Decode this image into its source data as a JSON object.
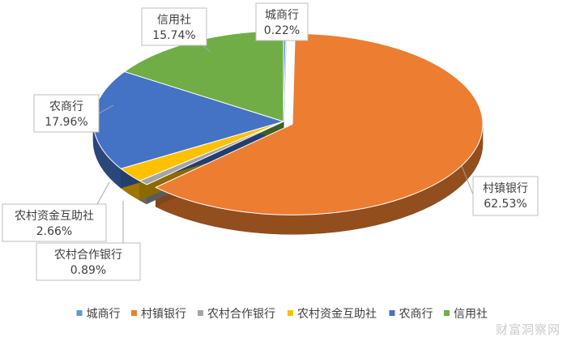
{
  "chart_data": {
    "type": "pie",
    "title": "",
    "categories": [
      "城商行",
      "村镇银行",
      "农村合作银行",
      "农村资金互助社",
      "农商行",
      "信用社"
    ],
    "values": [
      0.22,
      62.53,
      0.89,
      2.66,
      17.96,
      15.74
    ],
    "value_labels": [
      "0.22%",
      "62.53%",
      "0.89%",
      "2.66%",
      "17.96%",
      "15.74%"
    ],
    "colors": [
      "#5b9bd5",
      "#ed7d31",
      "#a5a5a5",
      "#ffc000",
      "#4472c4",
      "#70ad47"
    ],
    "legend": {
      "placement": "bottom",
      "entries": [
        "城商行",
        "村镇银行",
        "农村合作银行",
        "农村资金互助社",
        "农商行",
        "信用社"
      ]
    },
    "style": "3d-exploded"
  },
  "watermark": "财富洞察网"
}
